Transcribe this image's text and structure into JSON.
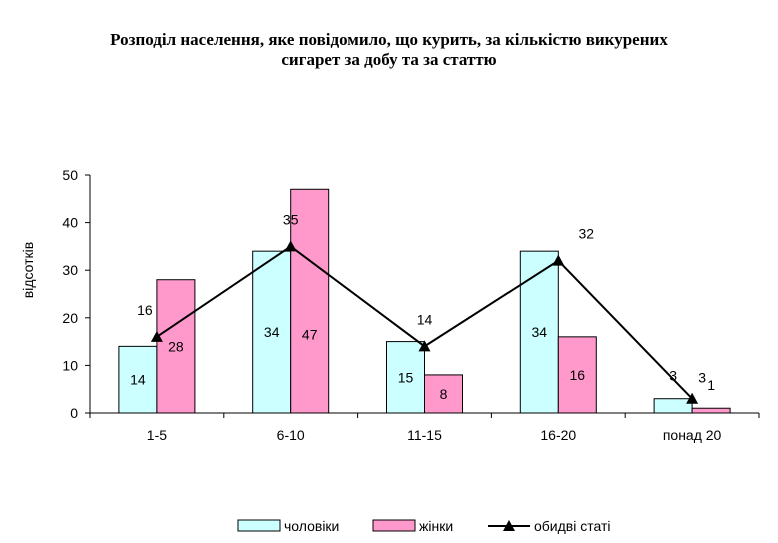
{
  "chart_data": {
    "type": "bar",
    "title_line1": "Розподіл населення, яке повідомило, що курить, за кількістю викурених",
    "title_line2": "сигарет за добу та за статтю",
    "xlabel": "",
    "ylabel": "відсотків",
    "ylim": [
      0,
      50
    ],
    "yticks": [
      0,
      10,
      20,
      30,
      40,
      50
    ],
    "grid": false,
    "legend_position": "bottom",
    "categories": [
      "1-5",
      "6-10",
      "11-15",
      "16-20",
      "понад 20"
    ],
    "series": [
      {
        "name": "чоловіки",
        "kind": "bar",
        "color": "#ccffff",
        "values": [
          14,
          34,
          15,
          34,
          3
        ]
      },
      {
        "name": "жінки",
        "kind": "bar",
        "color": "#ff99cc",
        "values": [
          28,
          47,
          8,
          16,
          1
        ]
      },
      {
        "name": "обидві статі",
        "kind": "line",
        "color": "#000000",
        "values": [
          16,
          35,
          14,
          32,
          3
        ]
      }
    ]
  }
}
